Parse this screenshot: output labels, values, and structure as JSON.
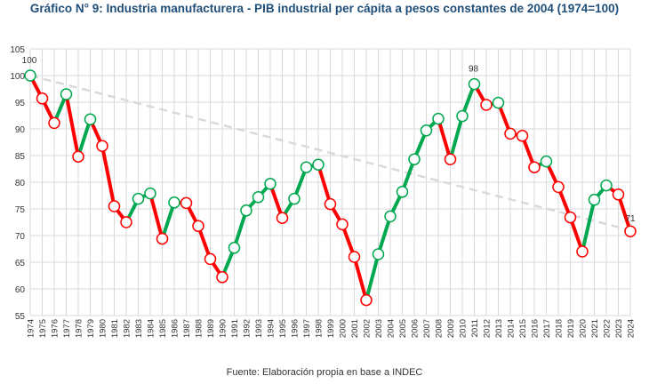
{
  "chart_data": {
    "type": "line",
    "title": "Gráfico N° 9: Industria manufacturera - PIB industrial per cápita a pesos constantes de 2004 (1974=100)",
    "source": "Fuente: Elaboración propia en base a INDEC",
    "xlabel": "",
    "ylabel": "",
    "ylim": [
      55,
      105
    ],
    "yticks": [
      55,
      60,
      65,
      70,
      75,
      80,
      85,
      90,
      95,
      100,
      105
    ],
    "grid": true,
    "x": [
      1974,
      1975,
      1976,
      1977,
      1978,
      1979,
      1980,
      1981,
      1982,
      1983,
      1984,
      1985,
      1986,
      1987,
      1988,
      1989,
      1990,
      1991,
      1992,
      1993,
      1994,
      1995,
      1996,
      1997,
      1998,
      1999,
      2000,
      2001,
      2002,
      2003,
      2004,
      2005,
      2006,
      2007,
      2008,
      2009,
      2010,
      2011,
      2012,
      2013,
      2014,
      2015,
      2016,
      2017,
      2018,
      2019,
      2020,
      2021,
      2022,
      2023,
      2024
    ],
    "values": [
      100,
      95.7,
      91.1,
      96.5,
      84.8,
      91.8,
      86.8,
      75.5,
      72.5,
      76.9,
      77.9,
      69.4,
      76.2,
      76.1,
      71.8,
      65.6,
      62.2,
      67.7,
      74.7,
      77.2,
      79.7,
      73.3,
      76.9,
      82.8,
      83.3,
      75.9,
      72.1,
      66.0,
      57.9,
      66.5,
      73.6,
      78.2,
      84.3,
      89.7,
      91.9,
      84.3,
      92.4,
      98.4,
      94.5,
      94.9,
      89.1,
      88.7,
      82.8,
      83.9,
      79.1,
      73.4,
      67.0,
      76.7,
      79.4,
      77.7,
      70.8
    ],
    "data_labels": [
      {
        "year": 1974,
        "text": "100"
      },
      {
        "year": 2011,
        "text": "98"
      },
      {
        "year": 2024,
        "text": "71"
      }
    ],
    "trendline": {
      "style": "dashed",
      "from": [
        1974,
        100
      ],
      "to": [
        2024,
        71
      ],
      "color": "#d9d9d9"
    },
    "colors": {
      "increase": "#00a84f",
      "decrease": "#ff0000",
      "grid": "#d9d9d9"
    }
  }
}
